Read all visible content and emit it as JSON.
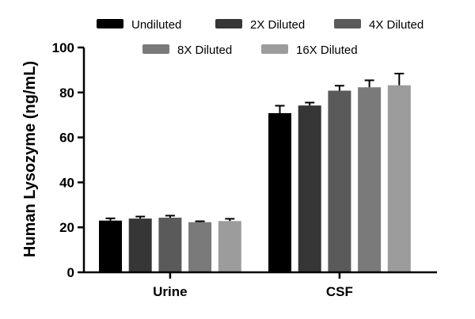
{
  "chart_data": {
    "type": "bar",
    "categories": [
      "Urine",
      "CSF"
    ],
    "ylabel": "Human Lysozyme (ng/mL)",
    "xlabel": "",
    "ylim": [
      0,
      100
    ],
    "yticks": [
      0,
      20,
      40,
      60,
      80,
      100
    ],
    "legend_position": "top",
    "series": [
      {
        "name": "Undiluted",
        "color": "#000000",
        "values": [
          23.0,
          70.8
        ],
        "errors": [
          1.0,
          3.3
        ]
      },
      {
        "name": "2X Diluted",
        "color": "#363636",
        "values": [
          23.9,
          74.2
        ],
        "errors": [
          0.9,
          1.3
        ]
      },
      {
        "name": "4X Diluted",
        "color": "#5a5a5a",
        "values": [
          24.3,
          80.8
        ],
        "errors": [
          0.9,
          2.2
        ]
      },
      {
        "name": "8X Diluted",
        "color": "#7a7a7a",
        "values": [
          22.3,
          82.3
        ],
        "errors": [
          0.4,
          3.1
        ]
      },
      {
        "name": "16X Diluted",
        "color": "#9c9c9c",
        "values": [
          22.8,
          83.2
        ],
        "errors": [
          1.0,
          5.2
        ]
      }
    ]
  }
}
